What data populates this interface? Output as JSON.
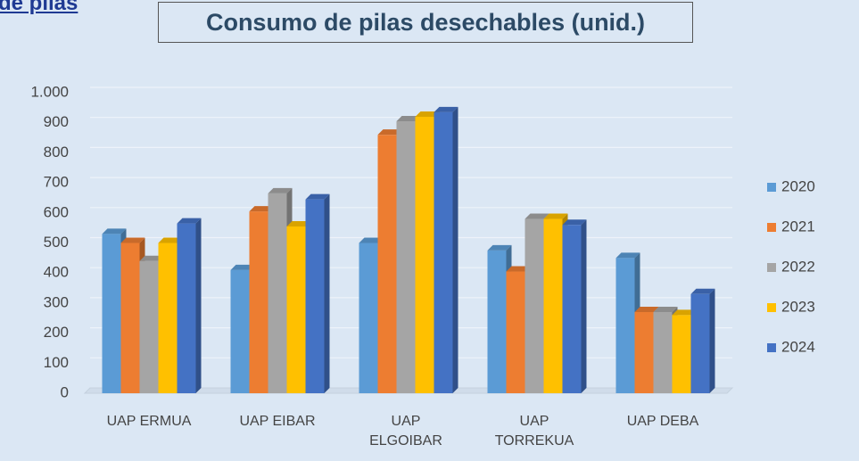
{
  "heading": "de pilas",
  "chart_data": {
    "type": "bar3d",
    "title": "Consumo de pilas desechables (unid.)",
    "categories": [
      "UAP ERMUA",
      "UAP EIBAR",
      "UAP ELGOIBAR",
      "UAP TORREKUA",
      "UAP DEBA"
    ],
    "series": [
      {
        "name": "2020",
        "color": "#5b9bd5",
        "values": [
          530,
          410,
          500,
          475,
          450
        ]
      },
      {
        "name": "2021",
        "color": "#ed7d31",
        "values": [
          500,
          605,
          860,
          405,
          270
        ]
      },
      {
        "name": "2022",
        "color": "#a5a5a5",
        "values": [
          440,
          665,
          905,
          580,
          270
        ]
      },
      {
        "name": "2023",
        "color": "#ffc000",
        "values": [
          500,
          555,
          920,
          580,
          260
        ]
      },
      {
        "name": "2024",
        "color": "#4472c4",
        "values": [
          565,
          645,
          935,
          560,
          330
        ]
      }
    ],
    "ylim": [
      0,
      1000
    ],
    "yticks": [
      0,
      100,
      200,
      300,
      400,
      500,
      600,
      700,
      800,
      900,
      {
        "value": 1000,
        "label": "1.000"
      }
    ],
    "grid": true,
    "legend": "right"
  }
}
